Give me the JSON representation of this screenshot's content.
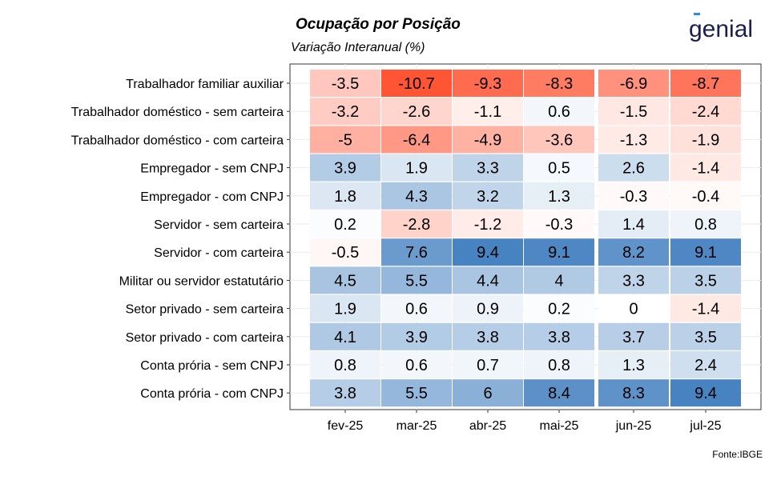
{
  "chart_data": {
    "type": "heatmap",
    "title": "Ocupação por Posição",
    "subtitle": "Variação Interanual (%)",
    "source": "Fonte:IBGE",
    "x_categories": [
      "fev-25",
      "mar-25",
      "abr-25",
      "mai-25",
      "jun-25",
      "jul-25"
    ],
    "y_categories": [
      "Trabalhador familiar auxiliar",
      "Trabalhador doméstico - sem carteira",
      "Trabalhador doméstico - com carteira",
      "Empregador - sem CNPJ",
      "Empregador - com CNPJ",
      "Servidor - sem carteira",
      "Servidor - com carteira",
      "Militar ou servidor estatutário",
      "Setor privado - sem carteira",
      "Setor privado - com carteira",
      "Conta prória - sem CNPJ",
      "Conta prória - com CNPJ"
    ],
    "values": [
      [
        -3.5,
        -10.7,
        -9.3,
        -8.3,
        -6.9,
        -8.7
      ],
      [
        -3.2,
        -2.6,
        -1.1,
        0.6,
        -1.5,
        -2.4
      ],
      [
        -5,
        -6.4,
        -4.9,
        -3.6,
        -1.3,
        -1.9
      ],
      [
        3.9,
        1.9,
        3.3,
        0.5,
        2.6,
        -1.4
      ],
      [
        1.8,
        4.3,
        3.2,
        1.3,
        -0.3,
        -0.4
      ],
      [
        0.2,
        -2.8,
        -1.2,
        -0.3,
        1.4,
        0.8
      ],
      [
        -0.5,
        7.6,
        9.4,
        9.1,
        8.2,
        9.1
      ],
      [
        4.5,
        5.5,
        4.4,
        4,
        3.3,
        3.5
      ],
      [
        1.9,
        0.6,
        0.9,
        0.2,
        0,
        -1.4
      ],
      [
        4.1,
        3.9,
        3.8,
        3.8,
        3.7,
        3.5
      ],
      [
        0.8,
        0.6,
        0.7,
        0.8,
        1.3,
        2.4
      ],
      [
        3.8,
        5.5,
        6,
        8.4,
        8.3,
        9.4
      ]
    ],
    "colors": {
      "negative": "#ff5535",
      "neutral": "#ffffff",
      "positive": "#2f72b8"
    },
    "color_limit": 10.7
  },
  "logo": {
    "text": "genial",
    "color": "#1b1f4d",
    "accent": "#2a8fd8"
  }
}
